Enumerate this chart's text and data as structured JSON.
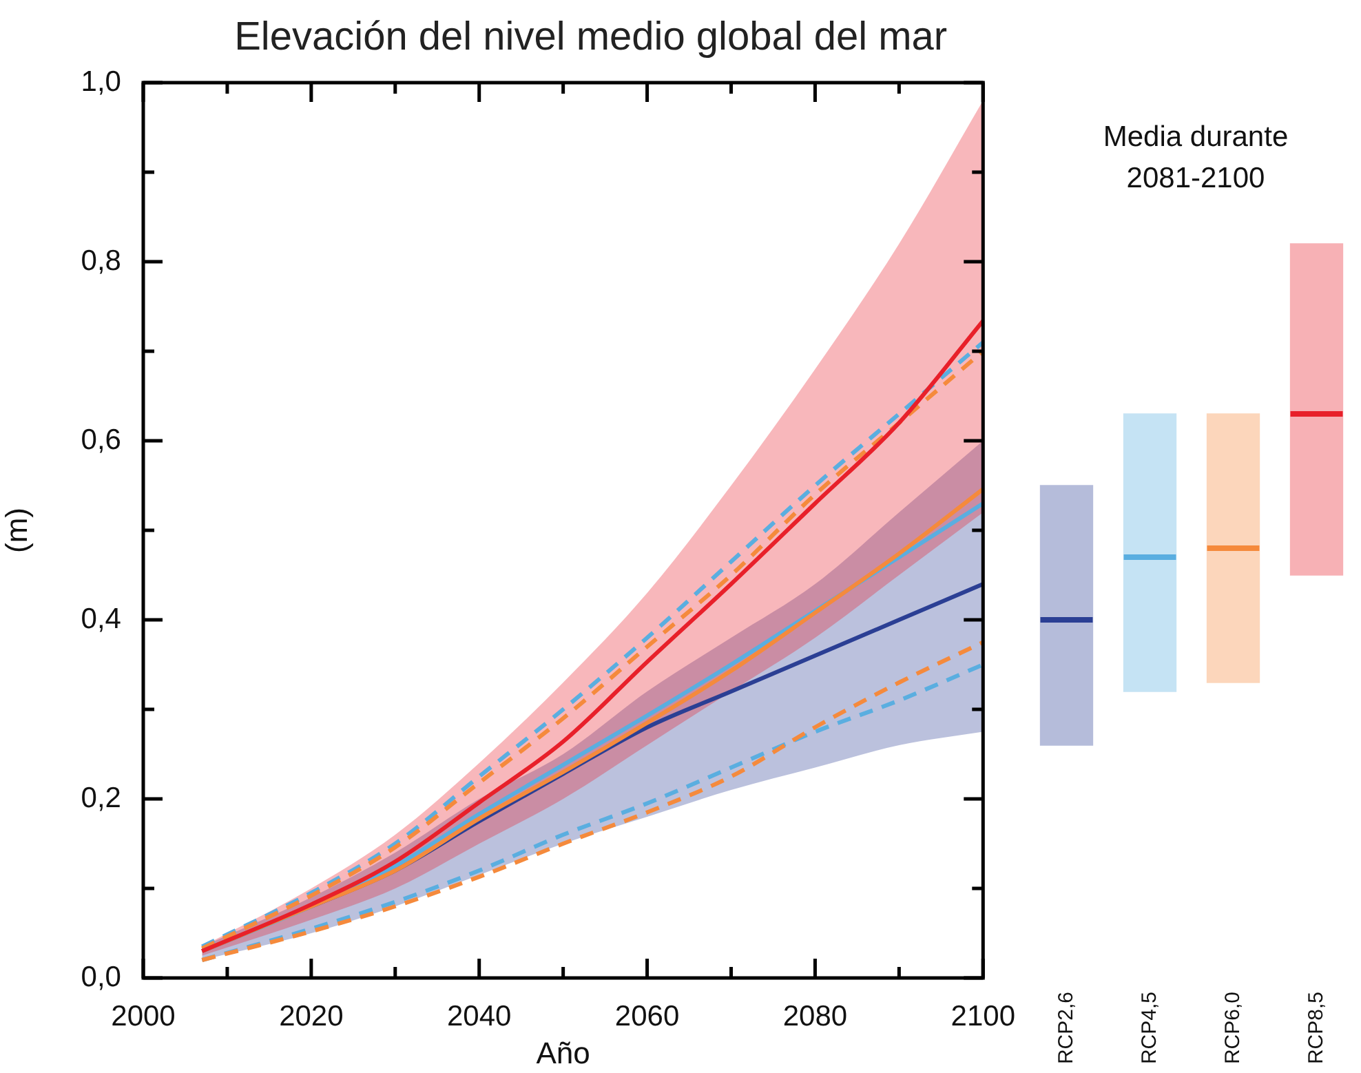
{
  "chart_data": [
    {
      "type": "line",
      "title": "Elevación del nivel medio global del mar",
      "xlabel": "Año",
      "ylabel": "(m)",
      "x": [
        2007,
        2020,
        2030,
        2040,
        2050,
        2060,
        2070,
        2080,
        2090,
        2100
      ],
      "xlim": [
        2000,
        2100
      ],
      "xticks": [
        2000,
        {
          "value": 2010,
          "label": null
        },
        2020,
        {
          "value": 2030,
          "label": null
        },
        2040,
        {
          "value": 2050,
          "label": null
        },
        2060,
        {
          "value": 2070,
          "label": null
        },
        2080,
        {
          "value": 2090,
          "label": null
        },
        2100
      ],
      "ylim": [
        0,
        1
      ],
      "yticks": [
        {
          "value": 0,
          "label": "0,0"
        },
        {
          "value": 0.1,
          "label": null
        },
        {
          "value": 0.2,
          "label": "0,2"
        },
        {
          "value": 0.3,
          "label": null
        },
        {
          "value": 0.4,
          "label": "0,4"
        },
        {
          "value": 0.5,
          "label": null
        },
        {
          "value": 0.6,
          "label": "0,6"
        },
        {
          "value": 0.7,
          "label": null
        },
        {
          "value": 0.8,
          "label": "0,8"
        },
        {
          "value": 0.9,
          "label": null
        },
        {
          "value": 1,
          "label": "1,0"
        }
      ],
      "series": [
        {
          "color": "#5aaee0",
          "line_style": "dashed",
          "values": [
            0.035,
            0.095,
            0.15,
            0.225,
            0.3,
            0.38,
            0.465,
            0.55,
            0.63,
            0.71
          ]
        },
        {
          "color": "#f58a3c",
          "line_style": "dashed",
          "values": [
            0.033,
            0.092,
            0.146,
            0.218,
            0.29,
            0.37,
            0.45,
            0.54,
            0.62,
            0.7
          ]
        },
        {
          "color": "#5aaee0",
          "line_style": "dashed",
          "values": [
            0.02,
            0.055,
            0.085,
            0.12,
            0.16,
            0.195,
            0.235,
            0.275,
            0.31,
            0.35
          ]
        },
        {
          "color": "#f58a3c",
          "line_style": "dashed",
          "values": [
            0.02,
            0.052,
            0.08,
            0.113,
            0.15,
            0.185,
            0.225,
            0.28,
            0.33,
            0.375
          ]
        },
        {
          "color": "#2b3f94",
          "values": [
            0.03,
            0.08,
            0.12,
            0.175,
            0.228,
            0.28,
            0.32,
            0.36,
            0.4,
            0.44
          ],
          "lower": [
            0.02,
            0.05,
            0.08,
            0.115,
            0.15,
            0.18,
            0.21,
            0.235,
            0.26,
            0.275
          ],
          "upper": [
            0.035,
            0.09,
            0.14,
            0.2,
            0.25,
            0.32,
            0.38,
            0.44,
            0.52,
            0.6
          ]
        },
        {
          "color": "#5aaee0",
          "values": [
            0.03,
            0.08,
            0.125,
            0.183,
            0.238,
            0.293,
            0.35,
            0.41,
            0.47,
            0.53
          ]
        },
        {
          "color": "#f58a3c",
          "values": [
            0.03,
            0.08,
            0.12,
            0.178,
            0.23,
            0.285,
            0.343,
            0.408,
            0.474,
            0.546
          ]
        },
        {
          "color": "#e8202a",
          "values": [
            0.03,
            0.082,
            0.13,
            0.196,
            0.264,
            0.353,
            0.44,
            0.53,
            0.62,
            0.734
          ],
          "lower": [
            0.025,
            0.065,
            0.1,
            0.15,
            0.2,
            0.26,
            0.32,
            0.38,
            0.45,
            0.52
          ],
          "upper": [
            0.035,
            0.1,
            0.16,
            0.24,
            0.33,
            0.43,
            0.55,
            0.68,
            0.82,
            0.98
          ]
        }
      ]
    },
    {
      "type": "box",
      "title": "Media durante\n2081-2100",
      "categories": [
        "RCP2,6",
        "RCP4,5",
        "RCP6,0",
        "RCP8,5"
      ],
      "boxes": [
        {
          "low": 0.26,
          "q1": 0.26,
          "median": 0.4,
          "q3": 0.55,
          "high": 0.55
        },
        {
          "low": 0.32,
          "q1": 0.32,
          "median": 0.47,
          "q3": 0.63,
          "high": 0.63
        },
        {
          "low": 0.33,
          "q1": 0.33,
          "median": 0.48,
          "q3": 0.63,
          "high": 0.63
        },
        {
          "low": 0.45,
          "q1": 0.45,
          "median": 0.63,
          "q3": 0.82,
          "high": 0.82
        }
      ],
      "colors": [
        "#2b3f94",
        "#5aaee0",
        "#f58a3c",
        "#e8202a"
      ],
      "ylim": [
        0,
        1
      ],
      "tick_labels": "x"
    }
  ]
}
